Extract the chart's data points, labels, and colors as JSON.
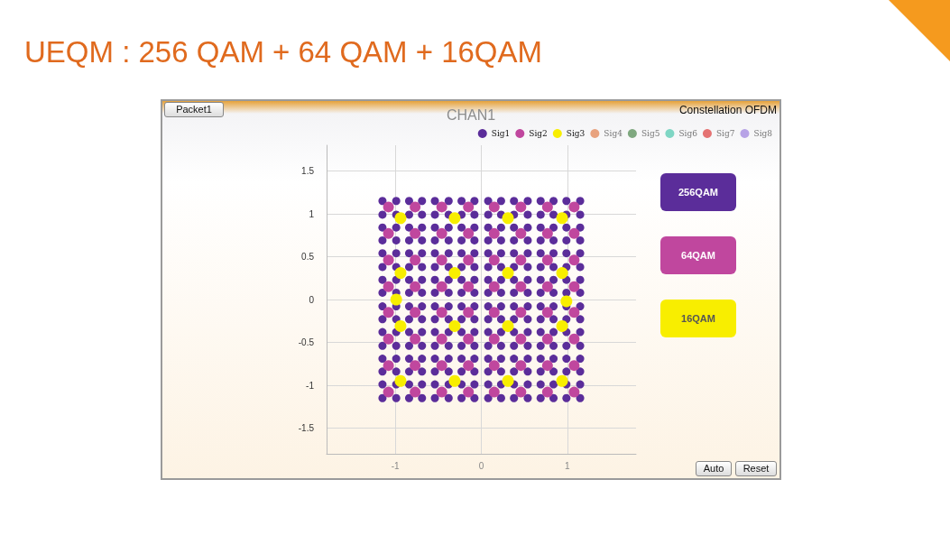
{
  "chart_data": {
    "type": "scatter",
    "title": "UEQM : 256 QAM + 64 QAM + 16QAM",
    "subtitle": "CHAN1",
    "annotations": [
      "Constellation OFDM",
      "Packet1",
      "256QAM",
      "64QAM",
      "16QAM",
      "Auto",
      "Reset"
    ],
    "xlim": [
      -1.8,
      1.8
    ],
    "xticks": [
      -1,
      0,
      1
    ],
    "ylim": [
      -1.8,
      1.8
    ],
    "yticks": [
      -1.5,
      -1,
      -0.5,
      0,
      0.5,
      1,
      1.5
    ],
    "grid": true,
    "legend": "top right",
    "marker": "circle",
    "series": [
      {
        "name": "Sig1",
        "color": "#5b2d9a",
        "x": [
          -1.15,
          -1.15,
          -1.15,
          -1.15,
          -1.15,
          -1.15,
          -1.15,
          -1.15,
          -1.15,
          -1.15,
          -1.15,
          -1.15,
          -1.15,
          -1.15,
          -1.15,
          -1.15,
          -0.99,
          -0.99,
          -0.99,
          -0.99,
          -0.99,
          -0.99,
          -0.99,
          -0.99,
          -0.99,
          -0.99,
          -0.99,
          -0.99,
          -0.99,
          -0.99,
          -0.99,
          -0.99,
          -0.84,
          -0.84,
          -0.84,
          -0.84,
          -0.84,
          -0.84,
          -0.84,
          -0.84,
          -0.84,
          -0.84,
          -0.84,
          -0.84,
          -0.84,
          -0.84,
          -0.84,
          -0.84,
          -0.69,
          -0.69,
          -0.69,
          -0.69,
          -0.69,
          -0.69,
          -0.69,
          -0.69,
          -0.69,
          -0.69,
          -0.69,
          -0.69,
          -0.69,
          -0.69,
          -0.69,
          -0.69,
          -0.54,
          -0.54,
          -0.54,
          -0.54,
          -0.54,
          -0.54,
          -0.54,
          -0.54,
          -0.54,
          -0.54,
          -0.54,
          -0.54,
          -0.54,
          -0.54,
          -0.54,
          -0.54,
          -0.38,
          -0.38,
          -0.38,
          -0.38,
          -0.38,
          -0.38,
          -0.38,
          -0.38,
          -0.38,
          -0.38,
          -0.38,
          -0.38,
          -0.38,
          -0.38,
          -0.38,
          -0.38,
          -0.23,
          -0.23,
          -0.23,
          -0.23,
          -0.23,
          -0.23,
          -0.23,
          -0.23,
          -0.23,
          -0.23,
          -0.23,
          -0.23,
          -0.23,
          -0.23,
          -0.23,
          -0.23,
          -0.08,
          -0.08,
          -0.08,
          -0.08,
          -0.08,
          -0.08,
          -0.08,
          -0.08,
          -0.08,
          -0.08,
          -0.08,
          -0.08,
          -0.08,
          -0.08,
          -0.08,
          -0.08,
          0.08,
          0.08,
          0.08,
          0.08,
          0.08,
          0.08,
          0.08,
          0.08,
          0.08,
          0.08,
          0.08,
          0.08,
          0.08,
          0.08,
          0.08,
          0.08,
          0.23,
          0.23,
          0.23,
          0.23,
          0.23,
          0.23,
          0.23,
          0.23,
          0.23,
          0.23,
          0.23,
          0.23,
          0.23,
          0.23,
          0.23,
          0.23,
          0.38,
          0.38,
          0.38,
          0.38,
          0.38,
          0.38,
          0.38,
          0.38,
          0.38,
          0.38,
          0.38,
          0.38,
          0.38,
          0.38,
          0.38,
          0.38,
          0.54,
          0.54,
          0.54,
          0.54,
          0.54,
          0.54,
          0.54,
          0.54,
          0.54,
          0.54,
          0.54,
          0.54,
          0.54,
          0.54,
          0.54,
          0.54,
          0.69,
          0.69,
          0.69,
          0.69,
          0.69,
          0.69,
          0.69,
          0.69,
          0.69,
          0.69,
          0.69,
          0.69,
          0.69,
          0.69,
          0.69,
          0.69,
          0.84,
          0.84,
          0.84,
          0.84,
          0.84,
          0.84,
          0.84,
          0.84,
          0.84,
          0.84,
          0.84,
          0.84,
          0.84,
          0.84,
          0.84,
          0.84,
          0.99,
          0.99,
          0.99,
          0.99,
          0.99,
          0.99,
          0.99,
          0.99,
          0.99,
          0.99,
          0.99,
          0.99,
          0.99,
          0.99,
          0.99,
          0.99,
          1.15,
          1.15,
          1.15,
          1.15,
          1.15,
          1.15,
          1.15,
          1.15,
          1.15,
          1.15,
          1.15,
          1.15,
          1.15,
          1.15,
          1.15,
          1.15
        ],
        "values": [
          -1.15,
          -0.99,
          -0.84,
          -0.69,
          -0.54,
          -0.38,
          -0.23,
          -0.08,
          0.08,
          0.23,
          0.38,
          0.54,
          0.69,
          0.84,
          0.99,
          1.15,
          -1.15,
          -0.99,
          -0.84,
          -0.69,
          -0.54,
          -0.38,
          -0.23,
          -0.08,
          0.08,
          0.23,
          0.38,
          0.54,
          0.69,
          0.84,
          0.99,
          1.15,
          -1.15,
          -0.99,
          -0.84,
          -0.69,
          -0.54,
          -0.38,
          -0.23,
          -0.08,
          0.08,
          0.23,
          0.38,
          0.54,
          0.69,
          0.84,
          0.99,
          1.15,
          -1.15,
          -0.99,
          -0.84,
          -0.69,
          -0.54,
          -0.38,
          -0.23,
          -0.08,
          0.08,
          0.23,
          0.38,
          0.54,
          0.69,
          0.84,
          0.99,
          1.15,
          -1.15,
          -0.99,
          -0.84,
          -0.69,
          -0.54,
          -0.38,
          -0.23,
          -0.08,
          0.08,
          0.23,
          0.38,
          0.54,
          0.69,
          0.84,
          0.99,
          1.15,
          -1.15,
          -0.99,
          -0.84,
          -0.69,
          -0.54,
          -0.38,
          -0.23,
          -0.08,
          0.08,
          0.23,
          0.38,
          0.54,
          0.69,
          0.84,
          0.99,
          1.15,
          -1.15,
          -0.99,
          -0.84,
          -0.69,
          -0.54,
          -0.38,
          -0.23,
          -0.08,
          0.08,
          0.23,
          0.38,
          0.54,
          0.69,
          0.84,
          0.99,
          1.15,
          -1.15,
          -0.99,
          -0.84,
          -0.69,
          -0.54,
          -0.38,
          -0.23,
          -0.08,
          0.08,
          0.23,
          0.38,
          0.54,
          0.69,
          0.84,
          0.99,
          1.15,
          -1.15,
          -0.99,
          -0.84,
          -0.69,
          -0.54,
          -0.38,
          -0.23,
          -0.08,
          0.08,
          0.23,
          0.38,
          0.54,
          0.69,
          0.84,
          0.99,
          1.15,
          -1.15,
          -0.99,
          -0.84,
          -0.69,
          -0.54,
          -0.38,
          -0.23,
          -0.08,
          0.08,
          0.23,
          0.38,
          0.54,
          0.69,
          0.84,
          0.99,
          1.15,
          -1.15,
          -0.99,
          -0.84,
          -0.69,
          -0.54,
          -0.38,
          -0.23,
          -0.08,
          0.08,
          0.23,
          0.38,
          0.54,
          0.69,
          0.84,
          0.99,
          1.15,
          -1.15,
          -0.99,
          -0.84,
          -0.69,
          -0.54,
          -0.38,
          -0.23,
          -0.08,
          0.08,
          0.23,
          0.38,
          0.54,
          0.69,
          0.84,
          0.99,
          1.15,
          -1.15,
          -0.99,
          -0.84,
          -0.69,
          -0.54,
          -0.38,
          -0.23,
          -0.08,
          0.08,
          0.23,
          0.38,
          0.54,
          0.69,
          0.84,
          0.99,
          1.15,
          -1.15,
          -0.99,
          -0.84,
          -0.69,
          -0.54,
          -0.38,
          -0.23,
          -0.08,
          0.08,
          0.23,
          0.38,
          0.54,
          0.69,
          0.84,
          0.99,
          1.15,
          -1.15,
          -0.99,
          -0.84,
          -0.69,
          -0.54,
          -0.38,
          -0.23,
          -0.08,
          0.08,
          0.23,
          0.38,
          0.54,
          0.69,
          0.84,
          0.99,
          1.15,
          -1.15,
          -0.99,
          -0.84,
          -0.69,
          -0.54,
          -0.38,
          -0.23,
          -0.08,
          0.08,
          0.23,
          0.38,
          0.54,
          0.69,
          0.84,
          0.99,
          1.15
        ]
      },
      {
        "name": "Sig2",
        "color": "#c0479e",
        "x": [
          -1.08,
          -1.08,
          -1.08,
          -1.08,
          -1.08,
          -1.08,
          -1.08,
          -1.08,
          -0.77,
          -0.77,
          -0.77,
          -0.77,
          -0.77,
          -0.77,
          -0.77,
          -0.77,
          -0.46,
          -0.46,
          -0.46,
          -0.46,
          -0.46,
          -0.46,
          -0.46,
          -0.46,
          -0.15,
          -0.15,
          -0.15,
          -0.15,
          -0.15,
          -0.15,
          -0.15,
          -0.15,
          0.15,
          0.15,
          0.15,
          0.15,
          0.15,
          0.15,
          0.15,
          0.15,
          0.46,
          0.46,
          0.46,
          0.46,
          0.46,
          0.46,
          0.46,
          0.46,
          0.77,
          0.77,
          0.77,
          0.77,
          0.77,
          0.77,
          0.77,
          0.77,
          1.08,
          1.08,
          1.08,
          1.08,
          1.08,
          1.08,
          1.08,
          1.08
        ],
        "values": [
          -1.08,
          -0.77,
          -0.46,
          -0.15,
          0.15,
          0.46,
          0.77,
          1.08,
          -1.08,
          -0.77,
          -0.46,
          -0.15,
          0.15,
          0.46,
          0.77,
          1.08,
          -1.08,
          -0.77,
          -0.46,
          -0.15,
          0.15,
          0.46,
          0.77,
          1.08,
          -1.08,
          -0.77,
          -0.46,
          -0.15,
          0.15,
          0.46,
          0.77,
          1.08,
          -1.08,
          -0.77,
          -0.46,
          -0.15,
          0.15,
          0.46,
          0.77,
          1.08,
          -1.08,
          -0.77,
          -0.46,
          -0.15,
          0.15,
          0.46,
          0.77,
          1.08,
          -1.08,
          -0.77,
          -0.46,
          -0.15,
          0.15,
          0.46,
          0.77,
          1.08,
          -1.08,
          -0.77,
          -0.46,
          -0.15,
          0.15,
          0.46,
          0.77,
          1.08
        ]
      },
      {
        "name": "Sig3",
        "color": "#f8ee00",
        "x": [
          -0.94,
          -0.94,
          -0.94,
          -0.94,
          -0.31,
          -0.31,
          -0.31,
          -0.31,
          0.31,
          0.31,
          0.31,
          0.31,
          0.94,
          0.94,
          0.94,
          0.94,
          -0.99,
          0.99
        ],
        "values": [
          -0.95,
          -0.31,
          0.31,
          0.95,
          -0.95,
          -0.31,
          0.31,
          0.95,
          -0.95,
          -0.31,
          0.31,
          0.95,
          -0.95,
          -0.31,
          0.31,
          0.95,
          0.0,
          -0.02
        ]
      },
      {
        "name": "Sig4",
        "color": "#e8a27e"
      },
      {
        "name": "Sig5",
        "color": "#7fa87f"
      },
      {
        "name": "Sig6",
        "color": "#7fd6c4"
      },
      {
        "name": "Sig7",
        "color": "#e57373"
      },
      {
        "name": "Sig8",
        "color": "#b7a3e6"
      }
    ]
  }
}
